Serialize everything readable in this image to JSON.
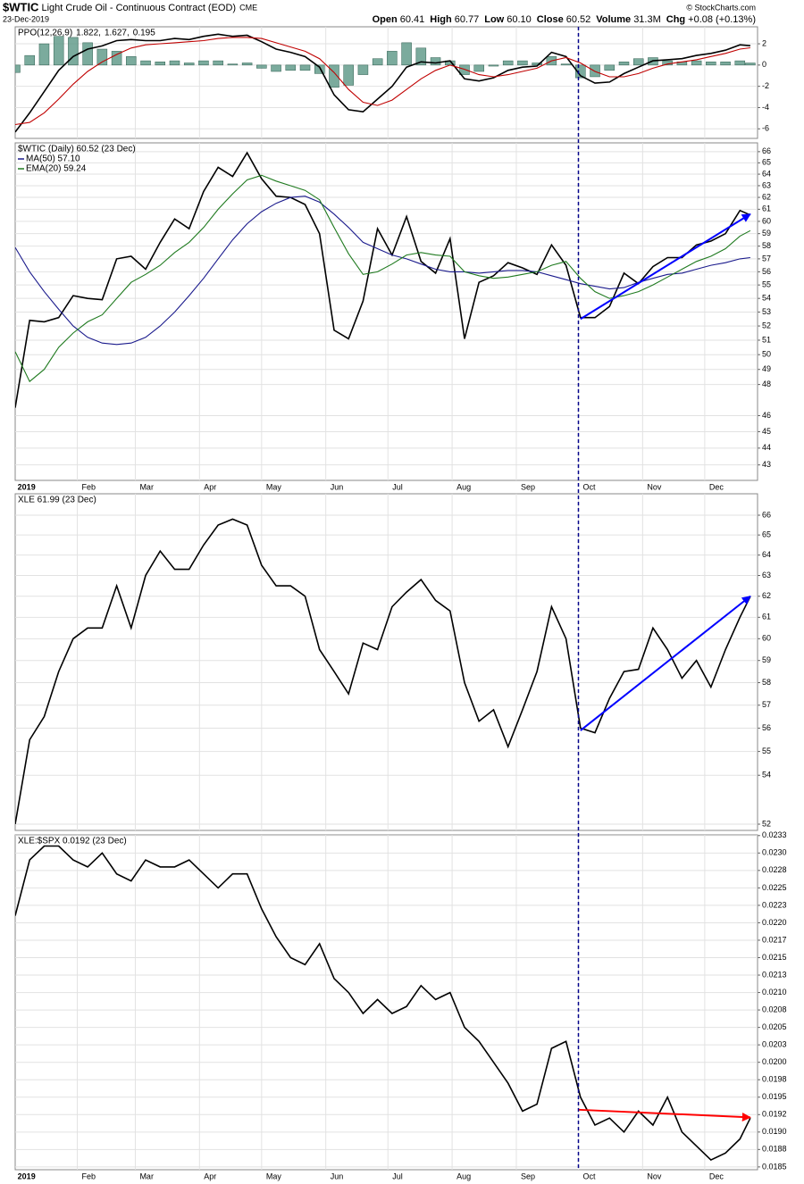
{
  "header": {
    "symbol": "$WTIC",
    "name": "Light Crude Oil - Continuous Contract (EOD)",
    "exchange": "CME",
    "date": "23-Dec-2019",
    "quote": [
      [
        "Open",
        "60.41"
      ],
      [
        "High",
        "60.77"
      ],
      [
        "Low",
        "60.10"
      ],
      [
        "Close",
        "60.52"
      ],
      [
        "Volume",
        "31.3M"
      ],
      [
        "Chg",
        "+0.08 (+0.13%)"
      ]
    ],
    "credit": "© StockCharts.com"
  },
  "chart_data": [
    {
      "type": "line",
      "title": "PPO(12,26,9)",
      "vline_x": 274,
      "x": [
        2,
        9,
        16,
        23,
        30,
        37,
        44,
        51,
        58,
        65,
        72,
        79,
        86,
        93,
        100,
        107,
        114,
        121,
        128,
        135,
        142,
        149,
        156,
        163,
        170,
        177,
        184,
        191,
        198,
        205,
        212,
        219,
        226,
        233,
        240,
        247,
        254,
        261,
        268,
        275,
        282,
        289,
        296,
        303,
        310,
        317,
        324,
        331,
        338,
        345,
        352,
        357
      ],
      "xlim": [
        2,
        360.5
      ],
      "ylim": [
        -6.9,
        3.6
      ],
      "yticks": [
        2,
        0,
        -2,
        -4,
        -6
      ],
      "grid": true,
      "series": [
        {
          "name": "1.822,",
          "color": "#000000",
          "values": [
            -6.3,
            -4.5,
            -2.5,
            -0.5,
            0.8,
            1.5,
            1.8,
            2.3,
            2.4,
            2.3,
            2.3,
            2.5,
            2.4,
            2.7,
            2.9,
            2.7,
            2.8,
            2.2,
            1.5,
            1.2,
            0.8,
            -0.2,
            -2.8,
            -4.2,
            -4.4,
            -3.2,
            -2,
            -0.2,
            0.3,
            0.2,
            0.4,
            -1.3,
            -1.5,
            -1.2,
            -0.5,
            -0.2,
            -0.1,
            1.2,
            0.8,
            -1,
            -1.7,
            -1.6,
            -0.8,
            -0.2,
            0.4,
            0.5,
            0.6,
            0.9,
            1.1,
            1.4,
            1.9,
            1.822
          ]
        },
        {
          "name": "1.627,",
          "color": "#c00000",
          "values": [
            -5.6,
            -5.4,
            -4.5,
            -3.2,
            -1.8,
            -0.6,
            0.3,
            1,
            1.6,
            1.9,
            2,
            2.1,
            2.2,
            2.3,
            2.5,
            2.6,
            2.6,
            2.5,
            2.1,
            1.7,
            1.3,
            0.6,
            -0.7,
            -2.3,
            -3.5,
            -3.8,
            -3.3,
            -2.3,
            -1.3,
            -0.5,
            0,
            -0.4,
            -0.9,
            -1.1,
            -0.9,
            -0.6,
            -0.3,
            0.4,
            0.7,
            0.2,
            -0.6,
            -1.1,
            -1.1,
            -0.8,
            -0.3,
            0.1,
            0.3,
            0.5,
            0.8,
            1.1,
            1.5,
            1.627
          ]
        },
        {
          "name": "0.195",
          "color": "#4f8f7c",
          "style": "histogram",
          "values": [
            -0.7,
            0.9,
            2,
            2.7,
            2.6,
            2.1,
            1.5,
            1.3,
            0.8,
            0.4,
            0.3,
            0.4,
            0.2,
            0.4,
            0.4,
            0.1,
            0.2,
            -0.3,
            -0.6,
            -0.5,
            -0.5,
            -0.8,
            -2.1,
            -1.9,
            -0.9,
            0.6,
            1.3,
            2.1,
            1.6,
            0.7,
            0.4,
            -0.9,
            -0.6,
            -0.1,
            0.4,
            0.4,
            0.2,
            0.8,
            0.1,
            -1.2,
            -1.1,
            -0.5,
            0.3,
            0.6,
            0.7,
            0.4,
            0.3,
            0.4,
            0.3,
            0.3,
            0.4,
            0.195
          ]
        }
      ]
    },
    {
      "type": "line",
      "title": "$WTIC (Daily) 60.52 (23 Dec)",
      "log_scale": true,
      "x": [
        2,
        9,
        16,
        23,
        30,
        37,
        44,
        51,
        58,
        65,
        72,
        79,
        86,
        93,
        100,
        107,
        114,
        121,
        128,
        135,
        142,
        149,
        156,
        163,
        170,
        177,
        184,
        191,
        198,
        205,
        212,
        219,
        226,
        233,
        240,
        247,
        254,
        261,
        268,
        275,
        282,
        289,
        296,
        303,
        310,
        317,
        324,
        331,
        338,
        345,
        352,
        357
      ],
      "xlim": [
        2,
        360.5
      ],
      "xticks": [
        {
          "value": 1,
          "label": "2019"
        },
        {
          "value": 32,
          "label": "Feb"
        },
        {
          "value": 60,
          "label": "Mar"
        },
        {
          "value": 91,
          "label": "Apr"
        },
        {
          "value": 121,
          "label": "May"
        },
        {
          "value": 152,
          "label": "Jun"
        },
        {
          "value": 182,
          "label": "Jul"
        },
        {
          "value": 213,
          "label": "Aug"
        },
        {
          "value": 244,
          "label": "Sep"
        },
        {
          "value": 274,
          "label": "Oct"
        },
        {
          "value": 305,
          "label": "Nov"
        },
        {
          "value": 335,
          "label": "Dec"
        }
      ],
      "ylim": [
        42.1,
        66.8
      ],
      "yticks": [
        43,
        44,
        45,
        46,
        48,
        49,
        50,
        51,
        52,
        53,
        54,
        55,
        56,
        57,
        58,
        59,
        60,
        61,
        62,
        63,
        64,
        65,
        66
      ],
      "grid": true,
      "series": [
        {
          "color": "#000000",
          "values": [
            46.5,
            52.4,
            52.3,
            52.6,
            54.2,
            54,
            53.9,
            57,
            57.2,
            56.2,
            58.3,
            60.2,
            59.4,
            62.5,
            64.6,
            63.8,
            65.9,
            63.6,
            62.1,
            62,
            61.4,
            59,
            51.7,
            51.1,
            53.8,
            59.4,
            57.3,
            60.4,
            56.8,
            55.9,
            58.6,
            51.1,
            55.2,
            55.7,
            56.7,
            56.3,
            55.8,
            58.1,
            56.5,
            52.6,
            52.6,
            53.4,
            55.9,
            55.1,
            56.4,
            57.1,
            57.1,
            58.1,
            58.4,
            59,
            60.9,
            60.52
          ]
        },
        {
          "name": "MA(50) 57.10",
          "color": "#1a1a8c",
          "values": [
            57.9,
            56,
            54.5,
            53.2,
            52,
            51.2,
            50.8,
            50.7,
            50.8,
            51.2,
            52,
            53,
            54.2,
            55.5,
            57,
            58.5,
            59.8,
            60.8,
            61.5,
            62,
            62.1,
            61.6,
            60.6,
            59.5,
            58.3,
            57.8,
            57.3,
            57,
            56.6,
            56.2,
            56,
            56,
            55.9,
            56,
            56.1,
            56.1,
            56,
            55.7,
            55.4,
            55.1,
            54.9,
            54.7,
            54.8,
            55.2,
            55.5,
            55.8,
            55.9,
            56.2,
            56.5,
            56.7,
            57,
            57.1
          ]
        },
        {
          "name": "EMA(20) 59.24",
          "color": "#1f7a1f",
          "values": [
            50.2,
            48.2,
            49,
            50.5,
            51.5,
            52.3,
            52.8,
            54,
            55.2,
            55.8,
            56.5,
            57.5,
            58.3,
            59.5,
            61,
            62.3,
            63.5,
            63.9,
            63.4,
            63,
            62.6,
            61.8,
            59.5,
            57.4,
            55.8,
            56,
            56.6,
            57.3,
            57.5,
            57.3,
            57.2,
            56,
            55.7,
            55.5,
            55.6,
            55.8,
            56,
            56.5,
            56.8,
            55.5,
            54.5,
            54,
            54.2,
            54.5,
            55,
            55.6,
            56.2,
            56.8,
            57.2,
            57.8,
            58.8,
            59.24
          ]
        }
      ],
      "trendline": {
        "x": [
          275,
          357
        ],
        "values": [
          52.5,
          60.6
        ],
        "color": "#0000ff"
      }
    },
    {
      "type": "line",
      "title": "XLE 61.99 (23 Dec)",
      "log_scale": true,
      "x": [
        2,
        9,
        16,
        23,
        30,
        37,
        44,
        51,
        58,
        65,
        72,
        79,
        86,
        93,
        100,
        107,
        114,
        121,
        128,
        135,
        142,
        149,
        156,
        163,
        170,
        177,
        184,
        191,
        198,
        205,
        212,
        219,
        226,
        233,
        240,
        247,
        254,
        261,
        268,
        275,
        282,
        289,
        296,
        303,
        310,
        317,
        324,
        331,
        338,
        345,
        352,
        357
      ],
      "xlim": [
        2,
        360.5
      ],
      "ylim": [
        51.75,
        67.1
      ],
      "yticks": [
        52,
        54,
        55,
        56,
        57,
        58,
        59,
        60,
        61,
        62,
        63,
        64,
        65,
        66
      ],
      "grid": true,
      "series": [
        {
          "color": "#000000",
          "values": [
            52,
            55.5,
            56.5,
            58.5,
            60,
            60.5,
            60.5,
            62.5,
            60.5,
            63,
            64.2,
            63.3,
            63.3,
            64.5,
            65.5,
            65.8,
            65.5,
            63.5,
            62.5,
            62.5,
            62,
            59.5,
            58.5,
            57.5,
            59.8,
            59.5,
            61.5,
            62.2,
            62.8,
            61.8,
            61.3,
            58,
            56.3,
            56.8,
            55.2,
            56.8,
            58.5,
            61.5,
            60,
            56,
            55.8,
            57.3,
            58.5,
            58.6,
            60.5,
            59.5,
            58.2,
            59,
            57.8,
            59.5,
            61,
            61.99
          ]
        }
      ],
      "trendline": {
        "x": [
          275,
          357
        ],
        "values": [
          55.9,
          62
        ],
        "color": "#0000ff"
      }
    },
    {
      "type": "line",
      "title": "XLE:$SPX 0.0192 (23 Dec)",
      "x": [
        2,
        9,
        16,
        23,
        30,
        37,
        44,
        51,
        58,
        65,
        72,
        79,
        86,
        93,
        100,
        107,
        114,
        121,
        128,
        135,
        142,
        149,
        156,
        163,
        170,
        177,
        184,
        191,
        198,
        205,
        212,
        219,
        226,
        233,
        240,
        247,
        254,
        261,
        268,
        275,
        282,
        289,
        296,
        303,
        310,
        317,
        324,
        331,
        338,
        345,
        352,
        357
      ],
      "xlim": [
        2,
        360.5
      ],
      "xticks": [
        {
          "value": 1,
          "label": "2019"
        },
        {
          "value": 32,
          "label": "Feb"
        },
        {
          "value": 60,
          "label": "Mar"
        },
        {
          "value": 91,
          "label": "Apr"
        },
        {
          "value": 121,
          "label": "May"
        },
        {
          "value": 152,
          "label": "Jun"
        },
        {
          "value": 182,
          "label": "Jul"
        },
        {
          "value": 213,
          "label": "Aug"
        },
        {
          "value": 244,
          "label": "Sep"
        },
        {
          "value": 274,
          "label": "Oct"
        },
        {
          "value": 305,
          "label": "Nov"
        },
        {
          "value": 335,
          "label": "Dec"
        }
      ],
      "ylim": [
        0.01846,
        0.02326
      ],
      "yticks": [
        0.0185,
        {
          "value": 0.01875,
          "label": "0.0188"
        },
        {
          "value": 0.019,
          "label": "0.0190"
        },
        {
          "value": 0.01925,
          "label": "0.0192"
        },
        0.0195,
        {
          "value": 0.01975,
          "label": "0.0198"
        },
        {
          "value": 0.02,
          "label": "0.0200"
        },
        {
          "value": 0.02025,
          "label": "0.0203"
        },
        0.0205,
        {
          "value": 0.02075,
          "label": "0.0208"
        },
        {
          "value": 0.021,
          "label": "0.0210"
        },
        {
          "value": 0.02125,
          "label": "0.0213"
        },
        0.0215,
        {
          "value": 0.02175,
          "label": "0.0217"
        },
        {
          "value": 0.022,
          "label": "0.0220"
        },
        {
          "value": 0.02225,
          "label": "0.0223"
        },
        0.0225,
        {
          "value": 0.02275,
          "label": "0.0228"
        },
        {
          "value": 0.023,
          "label": "0.0230"
        },
        {
          "value": 0.02325,
          "label": "0.0233"
        }
      ],
      "grid": true,
      "series": [
        {
          "color": "#000000",
          "values": [
            0.0221,
            0.0229,
            0.0231,
            0.0231,
            0.0229,
            0.0228,
            0.023,
            0.0227,
            0.0226,
            0.0229,
            0.0228,
            0.0228,
            0.0229,
            0.0227,
            0.0225,
            0.0227,
            0.0227,
            0.0222,
            0.0218,
            0.0215,
            0.0214,
            0.0217,
            0.0212,
            0.021,
            0.0207,
            0.0209,
            0.0207,
            0.0208,
            0.0211,
            0.0209,
            0.021,
            0.0205,
            0.0203,
            0.02,
            0.0197,
            0.0193,
            0.0194,
            0.0202,
            0.0203,
            0.0195,
            0.0191,
            0.0192,
            0.019,
            0.0193,
            0.0191,
            0.0195,
            0.019,
            0.0188,
            0.0186,
            0.0187,
            0.0189,
            0.0192
          ]
        }
      ],
      "trendline": {
        "x": [
          274,
          357
        ],
        "values": [
          0.01932,
          0.01921
        ],
        "color": "#ff0000"
      }
    }
  ]
}
